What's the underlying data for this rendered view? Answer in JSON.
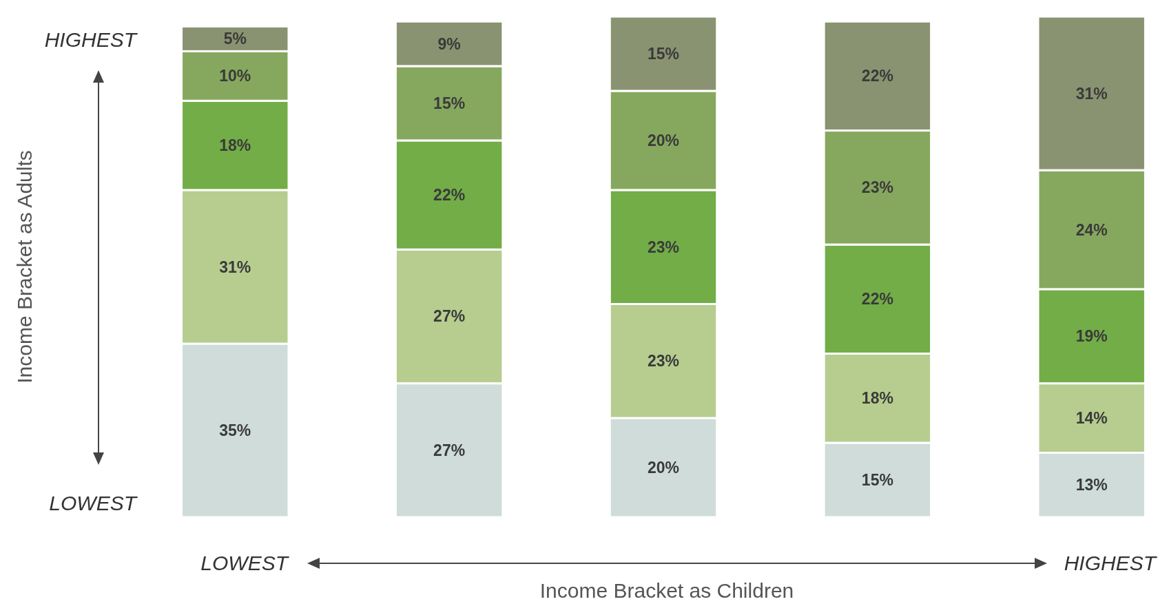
{
  "chart_data": {
    "type": "bar",
    "stacked": true,
    "xlabel": "Income Bracket as Children",
    "ylabel": "Income Bracket as Adults",
    "categories": [
      null,
      null,
      null,
      null,
      null
    ],
    "series": [
      {
        "color": "#cfdcd9",
        "values": [
          35,
          27,
          20,
          15,
          13
        ],
        "value_labels": [
          "35%",
          "27%",
          "20%",
          "15%",
          "13%"
        ]
      },
      {
        "color": "#b6cd8f",
        "values": [
          31,
          27,
          23,
          18,
          14
        ],
        "value_labels": [
          "31%",
          "27%",
          "23%",
          "18%",
          "14%"
        ]
      },
      {
        "color": "#72ad47",
        "values": [
          18,
          22,
          23,
          22,
          19
        ],
        "value_labels": [
          "18%",
          "22%",
          "23%",
          "22%",
          "19%"
        ]
      },
      {
        "color": "#86a85e",
        "values": [
          10,
          15,
          20,
          23,
          24
        ],
        "value_labels": [
          "10%",
          "15%",
          "20%",
          "23%",
          "24%"
        ]
      },
      {
        "color": "#8a9371",
        "values": [
          5,
          9,
          15,
          22,
          31
        ],
        "value_labels": [
          "5%",
          "9%",
          "15%",
          "22%",
          "31%"
        ]
      }
    ],
    "annotations": [
      "HIGHEST",
      "LOWEST",
      "LOWEST",
      "HIGHEST"
    ]
  }
}
